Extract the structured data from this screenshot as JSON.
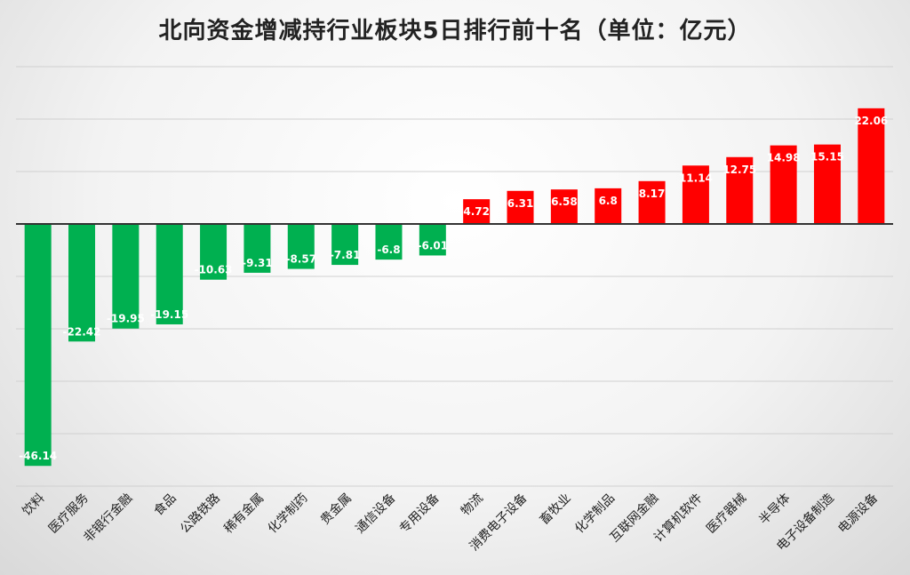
{
  "chart_data": {
    "type": "bar",
    "title": "北向资金增减持行业板块5日排行前十名（单位：亿元）",
    "xlabel": "",
    "ylabel": "",
    "ylim": [
      -50,
      30
    ],
    "grid": true,
    "categories": [
      "饮料",
      "医疗服务",
      "非银行金融",
      "食品",
      "公路铁路",
      "稀有金属",
      "化学制药",
      "贵金属",
      "通信设备",
      "专用设备",
      "物流",
      "消费电子设备",
      "畜牧业",
      "化学制品",
      "互联网金融",
      "计算机软件",
      "医疗器械",
      "半导体",
      "电子设备制造",
      "电源设备"
    ],
    "values": [
      -46.14,
      -22.42,
      -19.95,
      -19.15,
      -10.63,
      -9.31,
      -8.57,
      -7.81,
      -6.8,
      -6.01,
      4.72,
      6.31,
      6.58,
      6.8,
      8.17,
      11.14,
      12.75,
      14.98,
      15.15,
      22.06
    ],
    "data_labels": [
      "-46.14",
      "-22.42",
      "-19.95",
      "-19.15",
      "-10.63",
      "-9.31",
      "-8.57",
      "-7.81",
      "-6.8",
      "-6.01",
      "4.72",
      "6.31",
      "6.58",
      "6.8",
      "8.17",
      "11.14",
      "12.75",
      "14.98",
      "15.15",
      "22.06"
    ],
    "colors": {
      "positive": "#ff0000",
      "negative": "#00b050",
      "grid": "#d0d0d0",
      "axis": "#333333"
    }
  }
}
